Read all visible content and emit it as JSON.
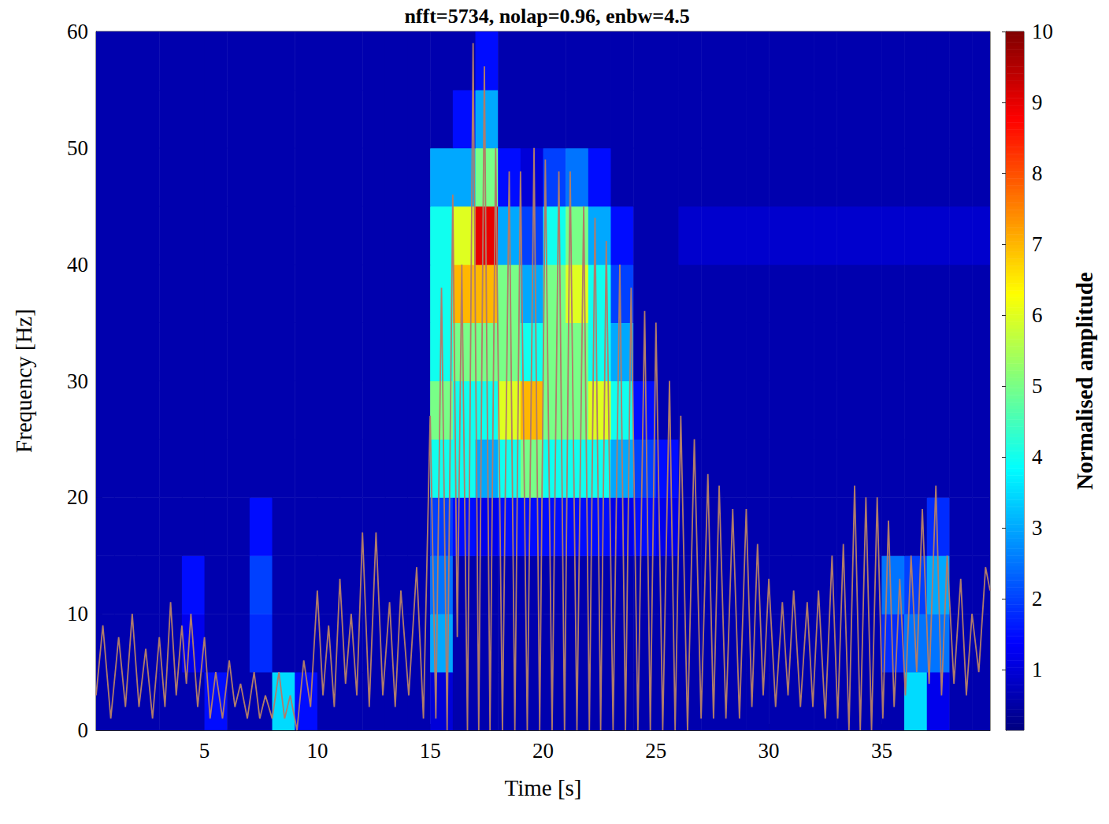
{
  "chart_data": {
    "type": "heatmap",
    "title": "nfft=5734, nolap=0.96, enbw=4.5",
    "x_label": "Time [s]",
    "y_label": "Frequency [Hz]",
    "xlim": [
      0.2,
      39.8
    ],
    "xticks": [
      5,
      10,
      15,
      20,
      25,
      30,
      35
    ],
    "ylim": [
      0,
      60
    ],
    "yticks": [
      0,
      10,
      20,
      30,
      40,
      50,
      60
    ],
    "grid": false,
    "heatmap": {
      "x_edges": [
        0,
        1,
        2,
        3,
        4,
        5,
        6,
        7,
        8,
        9,
        10,
        11,
        12,
        13,
        14,
        15,
        16,
        17,
        18,
        19,
        20,
        21,
        22,
        23,
        24,
        25,
        26,
        27,
        28,
        29,
        30,
        31,
        32,
        33,
        34,
        35,
        36,
        37,
        38,
        39,
        40
      ],
      "y_edges": [
        0,
        5,
        10,
        15,
        20,
        25,
        30,
        35,
        40,
        45,
        50,
        55,
        60
      ],
      "cells": [
        [
          0.6,
          0.6,
          0.6,
          0.6,
          0.6,
          1.5,
          0.6,
          0.6,
          3.5,
          1.5,
          0.6,
          0.6,
          0.6,
          0.6,
          0.6,
          1.0,
          0.6,
          0.6,
          0.6,
          0.6,
          0.6,
          0.6,
          0.6,
          0.6,
          0.6,
          0.6,
          0.6,
          0.6,
          0.6,
          0.6,
          0.6,
          0.6,
          0.6,
          0.6,
          0.6,
          0.6,
          3.5,
          1.2,
          0.6,
          0.6
        ],
        [
          0.6,
          0.6,
          0.6,
          0.6,
          1.2,
          0.6,
          0.6,
          1.8,
          0.6,
          0.6,
          0.6,
          0.6,
          0.6,
          0.6,
          0.6,
          3,
          0.6,
          0.6,
          0.6,
          0.6,
          0.6,
          0.6,
          0.6,
          0.6,
          0.6,
          0.6,
          0.6,
          0.6,
          0.6,
          0.6,
          0.6,
          0.6,
          0.6,
          0.6,
          0.6,
          1.8,
          2.5,
          2.5,
          0.6,
          0.6
        ],
        [
          0.6,
          0.6,
          0.6,
          0.6,
          1.5,
          0.6,
          0.6,
          2,
          0.6,
          0.6,
          0.6,
          0.6,
          0.6,
          0.6,
          0.6,
          2.5,
          0.6,
          0.6,
          0.6,
          0.6,
          0.6,
          0.6,
          0.6,
          0.6,
          0.6,
          0.6,
          0.6,
          0.6,
          0.6,
          0.6,
          0.6,
          0.6,
          0.6,
          0.6,
          0.6,
          2.5,
          2,
          3,
          0.6,
          0.6
        ],
        [
          0.6,
          0.6,
          0.6,
          0.6,
          0.6,
          0.6,
          0.6,
          1.5,
          0.6,
          0.6,
          0.6,
          0.6,
          0.6,
          0.6,
          0.6,
          2,
          1.5,
          1.2,
          1.5,
          1.5,
          1.5,
          1.5,
          1.5,
          1.2,
          1.5,
          1.2,
          0.6,
          0.6,
          0.6,
          0.6,
          0.6,
          0.6,
          0.6,
          0.6,
          0.6,
          0.6,
          0.6,
          1.8,
          0.6,
          0.6
        ],
        [
          0.6,
          0.6,
          0.6,
          0.6,
          0.6,
          0.6,
          0.6,
          0.6,
          0.6,
          0.6,
          0.6,
          0.6,
          0.6,
          0.6,
          0.6,
          4,
          4,
          3,
          4,
          5,
          4,
          4,
          4,
          3,
          2,
          1.5,
          0.6,
          0.6,
          0.6,
          0.6,
          0.6,
          0.6,
          0.6,
          0.6,
          0.6,
          0.6,
          0.6,
          0.6,
          0.6,
          0.6
        ],
        [
          0.6,
          0.6,
          0.6,
          0.6,
          0.6,
          0.6,
          0.6,
          0.6,
          0.6,
          0.6,
          0.6,
          0.6,
          0.6,
          0.6,
          0.6,
          5,
          4,
          4,
          6,
          7,
          5,
          5,
          6,
          4,
          1.5,
          0.6,
          0.6,
          0.6,
          0.6,
          0.6,
          0.6,
          0.6,
          0.6,
          0.6,
          0.6,
          0.6,
          0.6,
          0.6,
          0.6,
          0.6
        ],
        [
          0.6,
          0.6,
          0.6,
          0.6,
          0.6,
          0.6,
          0.6,
          0.6,
          0.6,
          0.6,
          0.6,
          0.6,
          0.6,
          0.6,
          0.6,
          4,
          5,
          5,
          5,
          4,
          5,
          5,
          4,
          3,
          0.6,
          0.6,
          0.6,
          0.6,
          0.6,
          0.6,
          0.6,
          0.6,
          0.6,
          0.6,
          0.6,
          0.6,
          0.6,
          0.6,
          0.6,
          0.6
        ],
        [
          0.6,
          0.6,
          0.6,
          0.6,
          0.6,
          0.6,
          0.6,
          0.6,
          0.6,
          0.6,
          0.6,
          0.6,
          0.6,
          0.6,
          0.6,
          4,
          7,
          7,
          5,
          3,
          5,
          6,
          4,
          2,
          0.6,
          0.6,
          0.6,
          0.6,
          0.6,
          0.6,
          0.6,
          0.6,
          0.6,
          0.6,
          0.6,
          0.6,
          0.6,
          0.6,
          0.6,
          0.6
        ],
        [
          0.6,
          0.6,
          0.6,
          0.6,
          0.6,
          0.6,
          0.6,
          0.6,
          0.6,
          0.6,
          0.6,
          0.6,
          0.6,
          0.6,
          0.6,
          4,
          6,
          9,
          3,
          2,
          4,
          5,
          3,
          1.5,
          0.6,
          0.6,
          0.9,
          0.9,
          0.9,
          0.9,
          0.9,
          0.9,
          0.9,
          0.9,
          0.9,
          0.9,
          0.9,
          0.9,
          0.9,
          0.9
        ],
        [
          0.6,
          0.6,
          0.6,
          0.6,
          0.6,
          0.6,
          0.6,
          0.6,
          0.6,
          0.6,
          0.6,
          0.6,
          0.6,
          0.6,
          0.6,
          3,
          3,
          5,
          1.5,
          1,
          2,
          2.5,
          1.5,
          0.6,
          0.6,
          0.6,
          0.6,
          0.6,
          0.6,
          0.6,
          0.6,
          0.6,
          0.6,
          0.6,
          0.6,
          0.6,
          0.6,
          0.6,
          0.6,
          0.6
        ],
        [
          0.6,
          0.6,
          0.6,
          0.6,
          0.6,
          0.6,
          0.6,
          0.6,
          0.6,
          0.6,
          0.6,
          0.6,
          0.6,
          0.6,
          0.6,
          0.6,
          1.5,
          3,
          0.6,
          0.6,
          0.6,
          0.6,
          0.6,
          0.6,
          0.6,
          0.6,
          0.6,
          0.6,
          0.6,
          0.6,
          0.6,
          0.6,
          0.6,
          0.6,
          0.6,
          0.6,
          0.6,
          0.6,
          0.6,
          0.6
        ],
        [
          0.6,
          0.6,
          0.6,
          0.6,
          0.6,
          0.6,
          0.6,
          0.6,
          0.6,
          0.6,
          0.6,
          0.6,
          0.6,
          0.6,
          0.6,
          0.6,
          0.6,
          1.5,
          0.6,
          0.6,
          0.6,
          0.6,
          0.6,
          0.6,
          0.6,
          0.6,
          0.6,
          0.6,
          0.6,
          0.6,
          0.6,
          0.6,
          0.6,
          0.6,
          0.6,
          0.6,
          0.6,
          0.6,
          0.6,
          0.6
        ]
      ]
    },
    "colorbar": {
      "label": "Normalised amplitude",
      "range": [
        0.15,
        10
      ],
      "ticks": [
        1,
        2,
        3,
        4,
        5,
        6,
        7,
        8,
        9,
        10
      ]
    },
    "line": {
      "type": "line",
      "color": "#b07c6a",
      "x": [
        0.2,
        0.5,
        0.85,
        1.2,
        1.5,
        1.8,
        2.1,
        2.4,
        2.7,
        3.0,
        3.25,
        3.5,
        3.75,
        4.0,
        4.2,
        4.4,
        4.7,
        5.0,
        5.25,
        5.5,
        5.8,
        6.1,
        6.35,
        6.6,
        6.9,
        7.2,
        7.45,
        7.7,
        8.0,
        8.3,
        8.55,
        8.8,
        9.1,
        9.4,
        9.7,
        10.0,
        10.25,
        10.5,
        10.75,
        11.0,
        11.25,
        11.5,
        11.75,
        12.0,
        12.3,
        12.6,
        12.9,
        13.2,
        13.45,
        13.7,
        14.05,
        14.4,
        14.7,
        15.0,
        15.25,
        15.5,
        15.75,
        16.0,
        16.2,
        16.4,
        16.65,
        16.9,
        17.15,
        17.4,
        17.65,
        17.9,
        18.2,
        18.5,
        18.75,
        19.0,
        19.3,
        19.6,
        19.85,
        20.1,
        20.4,
        20.7,
        20.95,
        21.2,
        21.5,
        21.8,
        22.05,
        22.3,
        22.55,
        22.8,
        23.1,
        23.4,
        23.65,
        23.9,
        24.2,
        24.5,
        24.75,
        25.0,
        25.3,
        25.6,
        25.85,
        26.1,
        26.4,
        26.7,
        27.0,
        27.3,
        27.55,
        27.8,
        28.1,
        28.4,
        28.7,
        29.0,
        29.25,
        29.5,
        29.75,
        30.0,
        30.3,
        30.6,
        30.85,
        31.1,
        31.4,
        31.7,
        31.95,
        32.2,
        32.5,
        32.8,
        33.05,
        33.3,
        33.55,
        33.8,
        34.05,
        34.3,
        34.55,
        34.8,
        35.05,
        35.3,
        35.55,
        35.8,
        36.05,
        36.3,
        36.55,
        36.8,
        37.1,
        37.4,
        37.65,
        37.9,
        38.2,
        38.5,
        38.75,
        39.0,
        39.3,
        39.6,
        39.8
      ],
      "values": [
        3,
        9,
        1,
        8,
        2,
        10,
        2,
        7,
        1,
        8,
        2,
        11,
        3,
        9,
        4,
        10,
        2,
        8,
        1,
        5,
        1,
        6,
        2,
        4,
        1,
        5,
        1,
        3,
        1,
        5,
        1,
        3,
        0,
        6,
        2,
        12,
        3,
        9,
        2,
        13,
        4,
        10,
        3,
        17,
        2,
        17,
        3,
        11,
        2,
        12,
        3,
        14,
        1,
        27,
        1,
        38,
        0,
        46,
        8,
        40,
        0,
        59,
        0,
        57,
        0,
        50,
        0,
        48,
        0,
        48,
        0,
        50,
        0,
        49,
        0,
        48,
        0,
        48,
        0,
        45,
        0,
        44,
        0,
        42,
        0,
        40,
        0,
        38,
        0,
        36,
        0,
        35,
        0,
        30,
        0,
        27,
        0,
        25,
        1,
        22,
        1,
        21,
        1,
        19,
        1,
        19,
        2,
        16,
        3,
        13,
        2,
        11,
        3,
        12,
        2,
        11,
        2,
        12,
        1,
        15,
        1,
        16,
        0,
        21,
        0,
        20,
        0,
        20,
        1,
        18,
        2,
        13,
        3,
        15,
        5,
        19,
        4,
        21,
        3,
        15,
        4,
        13,
        3,
        10,
        5,
        14,
        12
      ]
    }
  }
}
